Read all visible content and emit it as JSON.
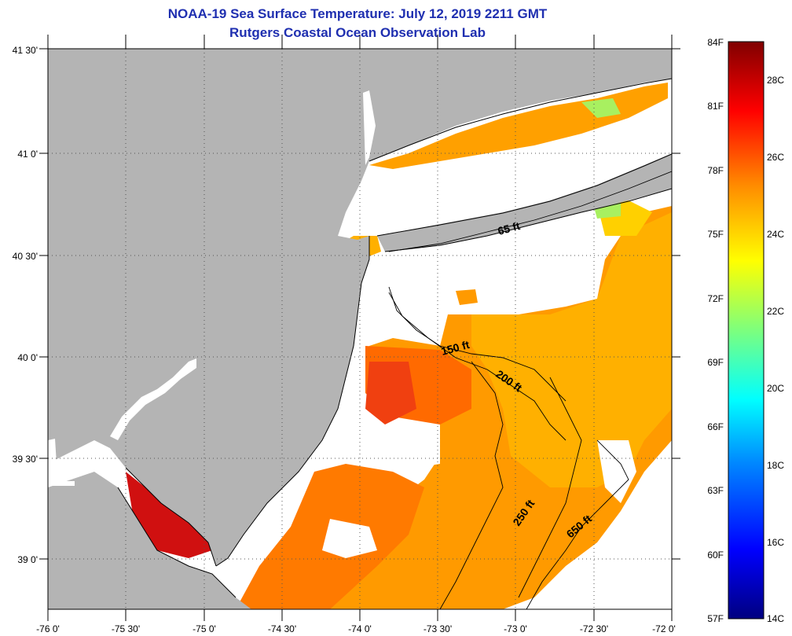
{
  "title_line_1": "NOAA-19 Sea Surface Temperature:  July 12, 2019 2211 GMT",
  "title_line_2": "Rutgers Coastal Ocean Observation Lab",
  "lat_labels": [
    "41 30'",
    "41 0'",
    "40 30'",
    "40 0'",
    "39 30'",
    "39 0'"
  ],
  "lon_labels": [
    "-76 0'",
    "-75 30'",
    "-75 0'",
    "-74 30'",
    "-74 0'",
    "-73 30'",
    "-73 0'",
    "-72 30'",
    "-72 0'"
  ],
  "depth_labels": [
    "65 ft",
    "150 ft",
    "200 ft",
    "250 ft",
    "650 ft"
  ],
  "colorbar": {
    "fahrenheit_labels": [
      "84F",
      "81F",
      "78F",
      "75F",
      "72F",
      "69F",
      "66F",
      "63F",
      "60F",
      "57F"
    ],
    "celsius_labels": [
      "28C",
      "26C",
      "24C",
      "22C",
      "20C",
      "18C",
      "16C",
      "14C"
    ],
    "range_f": [
      57,
      84
    ]
  },
  "colors": {
    "title": "#1f2fb0",
    "land": "#b4b4b4",
    "clouds": "#ffffff",
    "warm": "#ff7a00",
    "hot": "#d01010",
    "mild": "#ffb400"
  }
}
